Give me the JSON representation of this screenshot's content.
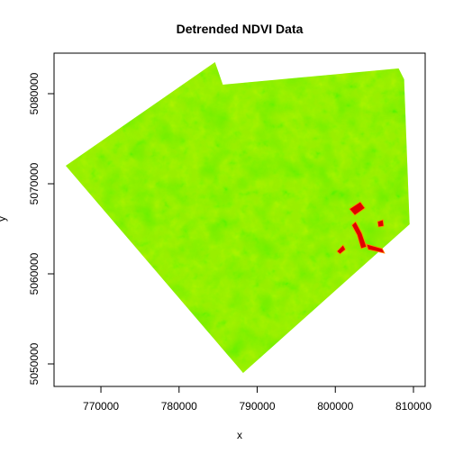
{
  "chart_data": {
    "type": "heatmap",
    "title": "Detrended NDVI Data",
    "xlabel": "x",
    "ylabel": "y",
    "xlim": [
      764000,
      811500
    ],
    "ylim": [
      5047500,
      5084500
    ],
    "x_ticks": [
      "770000",
      "780000",
      "790000",
      "800000",
      "810000"
    ],
    "y_ticks": [
      "5050000",
      "5060000",
      "5070000",
      "5080000"
    ],
    "x_tick_values": [
      770000,
      780000,
      790000,
      800000,
      810000
    ],
    "y_tick_values": [
      5050000,
      5060000,
      5070000,
      5080000
    ],
    "grid": false,
    "color_scale": {
      "low": "#e00000",
      "mid": "#ffff00",
      "high": "#00e000",
      "typical": "#99ee00"
    },
    "raster_extent_polygon": [
      [
        765500,
        5072000
      ],
      [
        784600,
        5083500
      ],
      [
        785600,
        5081000
      ],
      [
        808100,
        5082800
      ],
      [
        808800,
        5081600
      ],
      [
        809500,
        5065500
      ],
      [
        788200,
        5049000
      ],
      [
        765500,
        5072000
      ]
    ],
    "anomaly_regions_low_values": [
      [
        [
          801800,
          5067200
        ],
        [
          803200,
          5068000
        ],
        [
          803800,
          5067300
        ],
        [
          802500,
          5066500
        ]
      ],
      [
        [
          802600,
          5065800
        ],
        [
          803400,
          5064500
        ],
        [
          804000,
          5063000
        ],
        [
          803300,
          5062800
        ],
        [
          802800,
          5064300
        ],
        [
          802100,
          5065400
        ]
      ],
      [
        [
          804000,
          5063300
        ],
        [
          806000,
          5062800
        ],
        [
          806300,
          5062300
        ],
        [
          804200,
          5062700
        ]
      ],
      [
        [
          805400,
          5065800
        ],
        [
          806100,
          5066000
        ],
        [
          806200,
          5065300
        ],
        [
          805500,
          5065200
        ]
      ],
      [
        [
          800200,
          5062500
        ],
        [
          801000,
          5063200
        ],
        [
          801300,
          5062700
        ],
        [
          800600,
          5062200
        ]
      ]
    ]
  }
}
